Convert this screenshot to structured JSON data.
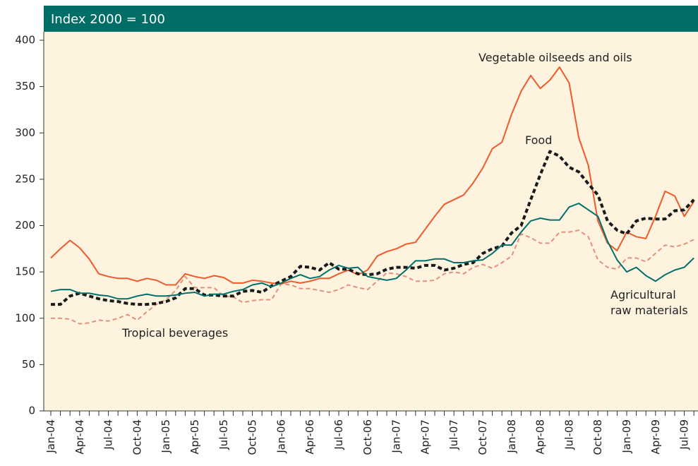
{
  "chart_data": {
    "type": "line",
    "title": "Index 2000 = 100",
    "categories": [
      "Jan-04",
      null,
      null,
      "Apr-04",
      null,
      null,
      "Jul-04",
      null,
      null,
      "Oct-04",
      null,
      null,
      "Jan-05",
      null,
      null,
      "Apr-05",
      null,
      null,
      "Jul-05",
      null,
      null,
      "Oct-05",
      null,
      null,
      "Jan-06",
      null,
      null,
      "Apr-06",
      null,
      null,
      "Jul-06",
      null,
      null,
      "Oct-06",
      null,
      null,
      "Jan-07",
      null,
      null,
      "Apr-07",
      null,
      null,
      "Jul-07",
      null,
      null,
      "Oct-07",
      null,
      null,
      "Jan-08",
      null,
      null,
      "Apr-08",
      null,
      null,
      "Jul-08",
      null,
      null,
      "Oct-08",
      null,
      null,
      "Jan-09",
      null,
      null,
      "Apr-09",
      null,
      null,
      "Jul-09",
      null
    ],
    "series": [
      {
        "name": "Tropical beverages",
        "color": "#e2917c",
        "line_style": "dashed",
        "values": [
          100,
          100,
          99,
          94,
          95,
          98,
          97,
          100,
          104,
          98,
          107,
          115,
          120,
          130,
          145,
          133,
          133,
          133,
          124,
          123,
          117,
          119,
          120,
          120,
          137,
          136,
          132,
          132,
          130,
          128,
          131,
          136,
          133,
          131,
          140,
          149,
          148,
          145,
          140,
          140,
          141,
          148,
          150,
          148,
          155,
          158,
          154,
          160,
          167,
          191,
          187,
          181,
          181,
          193,
          193,
          195,
          188,
          163,
          155,
          153,
          165,
          165,
          161,
          170,
          179,
          177,
          180,
          185
        ]
      },
      {
        "name": "Vegetable oilseeds and oils",
        "color": "#ee5a2a",
        "line_style": "solid",
        "values": [
          165,
          175,
          184,
          176,
          164,
          148,
          145,
          143,
          143,
          140,
          143,
          141,
          136,
          136,
          148,
          145,
          143,
          146,
          144,
          138,
          138,
          141,
          140,
          138,
          137,
          140,
          138,
          140,
          143,
          143,
          148,
          152,
          147,
          152,
          167,
          172,
          175,
          180,
          182,
          196,
          210,
          223,
          228,
          233,
          246,
          262,
          283,
          290,
          320,
          345,
          362,
          348,
          357,
          371,
          354,
          295,
          265,
          205,
          181,
          173,
          193,
          188,
          186,
          210,
          237,
          232,
          210,
          226
        ]
      },
      {
        "name": "Food",
        "color": "#1a1a1a",
        "line_style": "dashed",
        "values": [
          115,
          115,
          124,
          127,
          124,
          121,
          119,
          118,
          116,
          115,
          115,
          116,
          118,
          122,
          132,
          132,
          125,
          125,
          124,
          124,
          129,
          130,
          128,
          135,
          140,
          145,
          156,
          155,
          152,
          160,
          153,
          153,
          148,
          147,
          148,
          153,
          155,
          155,
          154,
          157,
          157,
          152,
          154,
          158,
          160,
          170,
          175,
          178,
          192,
          200,
          228,
          255,
          280,
          275,
          263,
          258,
          245,
          233,
          205,
          195,
          191,
          205,
          208,
          207,
          207,
          216,
          217,
          228
        ]
      },
      {
        "name": "Agricultural raw materials",
        "color": "#00706b",
        "line_style": "solid",
        "values": [
          129,
          131,
          131,
          127,
          127,
          125,
          124,
          121,
          121,
          124,
          126,
          124,
          124,
          125,
          127,
          128,
          124,
          126,
          126,
          129,
          131,
          136,
          138,
          134,
          138,
          143,
          147,
          143,
          145,
          152,
          157,
          154,
          155,
          145,
          143,
          141,
          143,
          152,
          162,
          162,
          164,
          164,
          160,
          160,
          162,
          163,
          170,
          179,
          179,
          193,
          205,
          208,
          206,
          206,
          220,
          224,
          217,
          210,
          183,
          163,
          150,
          155,
          146,
          140,
          147,
          152,
          155,
          165
        ]
      }
    ],
    "ylim": [
      0,
      400
    ],
    "yticks": [
      0,
      50,
      100,
      150,
      200,
      250,
      300,
      350,
      400
    ]
  }
}
